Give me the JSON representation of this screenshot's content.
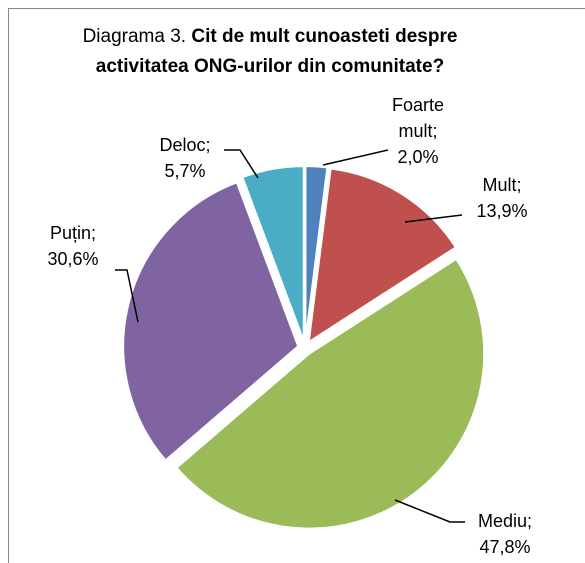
{
  "chart_data": {
    "type": "pie",
    "title_lead": "Diagrama 3.",
    "title": "Cit de mult cunoasteti despre activitatea ONG-urilor din comunitate?",
    "categories": [
      "Foarte mult;",
      "Mult;",
      "Mediu;",
      "Puțin;",
      "Deloc;"
    ],
    "values": [
      2.0,
      13.9,
      47.8,
      30.6,
      5.7
    ],
    "value_labels": [
      "2,0%",
      "13,9%",
      "47,8%",
      "30,6%",
      "5,7%"
    ],
    "colors": [
      "#4f81bd",
      "#c0504d",
      "#9bbb59",
      "#8064a2",
      "#4bacc6"
    ]
  }
}
